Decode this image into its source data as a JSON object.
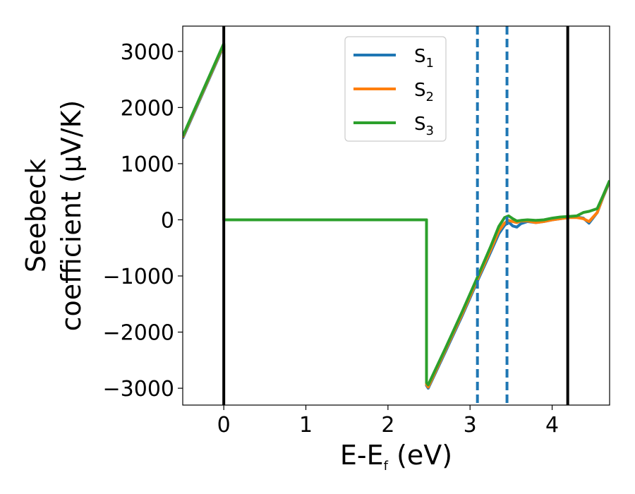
{
  "chart_data": {
    "type": "line",
    "xlabel": {
      "main": "E-E",
      "sub": "f",
      "rest": " (eV)"
    },
    "ylabel": {
      "line1": "Seebeck",
      "line2": "coefficient  (μV/K)"
    },
    "xlim": [
      -0.5,
      4.7
    ],
    "ylim": [
      -3300,
      3450
    ],
    "xticks": [
      {
        "v": 0,
        "label": "0"
      },
      {
        "v": 1,
        "label": "1"
      },
      {
        "v": 2,
        "label": "2"
      },
      {
        "v": 3,
        "label": "3"
      },
      {
        "v": 4,
        "label": "4"
      }
    ],
    "yticks": [
      {
        "v": 3000,
        "label": "3000"
      },
      {
        "v": 2000,
        "label": "2000"
      },
      {
        "v": 1000,
        "label": "1000"
      },
      {
        "v": 0,
        "label": "0"
      },
      {
        "v": -1000,
        "label": "−1000"
      },
      {
        "v": -2000,
        "label": "−2000"
      },
      {
        "v": -3000,
        "label": "−3000"
      }
    ],
    "grid": false,
    "legend_position": "top-center",
    "vlines": [
      {
        "x": 0,
        "color": "#000000",
        "style": "solid"
      },
      {
        "x": 4.19,
        "color": "#000000",
        "style": "solid"
      },
      {
        "x": 3.09,
        "color": "#1f77b4",
        "style": "dashed"
      },
      {
        "x": 3.45,
        "color": "#1f77b4",
        "style": "dashed"
      }
    ],
    "series": [
      {
        "name": "S",
        "sub": "1",
        "color": "#1f77b4",
        "x": [
          -0.5,
          0.0,
          0.0,
          2.47,
          2.47,
          2.49,
          2.7,
          2.9,
          3.1,
          3.25,
          3.35,
          3.42,
          3.47,
          3.52,
          3.57,
          3.62,
          3.7,
          3.8,
          3.9,
          4.0,
          4.1,
          4.2,
          4.3,
          4.38,
          4.45,
          4.55,
          4.62,
          4.7
        ],
        "y": [
          1450,
          3100,
          0,
          0,
          -2950,
          -3000,
          -2350,
          -1720,
          -1060,
          -580,
          -250,
          -100,
          -40,
          -110,
          -130,
          -70,
          -30,
          -50,
          -30,
          0,
          20,
          40,
          50,
          30,
          -60,
          130,
          400,
          680
        ]
      },
      {
        "name": "S",
        "sub": "2",
        "color": "#ff7f0e",
        "x": [
          -0.5,
          0.0,
          0.0,
          2.47,
          2.47,
          2.49,
          2.7,
          2.9,
          3.1,
          3.25,
          3.35,
          3.42,
          3.47,
          3.52,
          3.57,
          3.62,
          3.7,
          3.8,
          3.9,
          4.0,
          4.1,
          4.2,
          4.3,
          4.38,
          4.45,
          4.55,
          4.62,
          4.7
        ],
        "y": [
          1470,
          3120,
          0,
          0,
          -2930,
          -2980,
          -2320,
          -1690,
          -1030,
          -540,
          -200,
          -60,
          -10,
          -30,
          -50,
          -20,
          -20,
          -50,
          -30,
          0,
          20,
          40,
          40,
          20,
          -30,
          130,
          410,
          690
        ]
      },
      {
        "name": "S",
        "sub": "3",
        "color": "#2ca02c",
        "x": [
          -0.5,
          0.0,
          0.0,
          2.47,
          2.47,
          2.49,
          2.7,
          2.9,
          3.1,
          3.25,
          3.35,
          3.42,
          3.47,
          3.52,
          3.57,
          3.62,
          3.7,
          3.8,
          3.9,
          4.0,
          4.1,
          4.2,
          4.3,
          4.38,
          4.45,
          4.55,
          4.62,
          4.7
        ],
        "y": [
          1490,
          3140,
          0,
          0,
          -2900,
          -2940,
          -2290,
          -1650,
          -990,
          -480,
          -120,
          40,
          70,
          20,
          -20,
          -10,
          0,
          -10,
          0,
          30,
          50,
          60,
          70,
          130,
          150,
          200,
          430,
          700
        ]
      }
    ]
  }
}
